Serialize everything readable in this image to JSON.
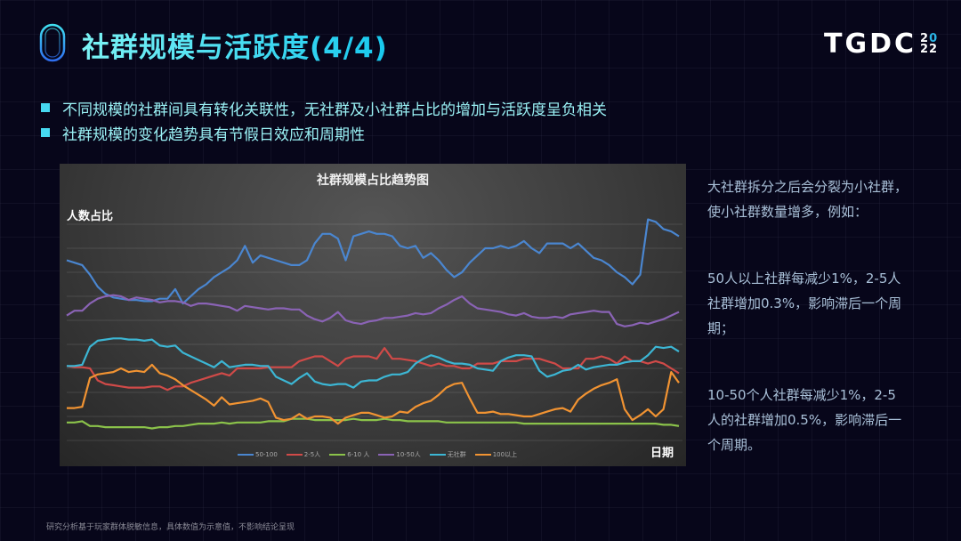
{
  "header": {
    "title": "社群规模与活跃度(4/4)",
    "brand": {
      "name": "TGDC",
      "year_top": "2",
      "year_top_accent": "0",
      "year_bottom": "22"
    }
  },
  "bullets": [
    "不同规模的社群间具有转化关联性，无社群及小社群占比的增加与活跃度呈负相关",
    "社群规模的变化趋势具有节假日效应和周期性"
  ],
  "colors": {
    "title_gradient_start": "#7cf3f5",
    "title_gradient_end": "#17c8ee",
    "bullet_text": "#9af1f5",
    "background": "#07061a",
    "side_text": "#a9c0d8"
  },
  "side_notes": [
    "大社群拆分之后会分裂为小社群，使小社群数量增多，例如：",
    "50人以上社群每减少1%，2-5人社群增加0.3%，影响滞后一个周期；",
    "10-50个人社群每减少1%，2-5人的社群增加0.5%，影响滞后一个周期。"
  ],
  "footer": "研究分析基于玩家群体脱敏信息，具体数值为示意值，不影响结论呈现",
  "chart_data": {
    "type": "line",
    "title": "社群规模占比趋势图",
    "xlabel": "日期",
    "ylabel": "人数占比",
    "grid": true,
    "legend_position": "bottom",
    "ylim": [
      0,
      9
    ],
    "x_count": 80,
    "series": [
      {
        "name": "50-100",
        "color": "#4a86d0",
        "values": [
          7.5,
          7.4,
          7.3,
          6.9,
          6.4,
          6.1,
          5.95,
          5.9,
          5.85,
          5.85,
          5.8,
          5.8,
          5.9,
          5.9,
          6.3,
          5.7,
          6.0,
          6.3,
          6.5,
          6.8,
          7.0,
          7.2,
          7.5,
          8.1,
          7.4,
          7.7,
          7.6,
          7.5,
          7.4,
          7.3,
          7.3,
          7.5,
          8.2,
          8.6,
          8.6,
          8.4,
          7.5,
          8.5,
          8.6,
          8.7,
          8.6,
          8.6,
          8.5,
          8.1,
          8.0,
          8.1,
          7.6,
          7.8,
          7.5,
          7.1,
          6.8,
          7.0,
          7.4,
          7.7,
          8.0,
          8.0,
          8.1,
          8.0,
          8.1,
          8.3,
          8.0,
          7.8,
          8.2,
          8.2,
          8.2,
          8.0,
          8.2,
          7.9,
          7.6,
          7.5,
          7.3,
          7.0,
          6.8,
          6.5,
          6.9,
          9.2,
          9.1,
          8.8,
          8.7,
          8.5
        ]
      },
      {
        "name": "2-5人",
        "color": "#d04a48",
        "values": [
          3.1,
          3.05,
          3.05,
          3.0,
          2.5,
          2.35,
          2.3,
          2.25,
          2.2,
          2.2,
          2.2,
          2.25,
          2.25,
          2.1,
          2.25,
          2.25,
          2.4,
          2.5,
          2.6,
          2.7,
          2.8,
          2.7,
          3.0,
          3.0,
          3.0,
          3.0,
          3.05,
          3.05,
          3.05,
          3.05,
          3.3,
          3.4,
          3.5,
          3.5,
          3.3,
          3.1,
          3.4,
          3.5,
          3.5,
          3.5,
          3.4,
          3.85,
          3.4,
          3.4,
          3.35,
          3.3,
          3.2,
          3.1,
          3.2,
          3.1,
          3.1,
          3.0,
          3.0,
          3.2,
          3.2,
          3.2,
          3.3,
          3.3,
          3.3,
          3.4,
          3.4,
          3.4,
          3.3,
          3.2,
          3.0,
          3.0,
          3.0,
          3.4,
          3.4,
          3.5,
          3.4,
          3.2,
          3.5,
          3.3,
          3.3,
          3.2,
          3.3,
          3.2,
          3.0,
          2.8
        ]
      },
      {
        "name": "6-10 人",
        "color": "#8bc34a",
        "values": [
          0.75,
          0.75,
          0.8,
          0.6,
          0.6,
          0.55,
          0.55,
          0.55,
          0.55,
          0.55,
          0.55,
          0.5,
          0.55,
          0.55,
          0.6,
          0.6,
          0.65,
          0.7,
          0.7,
          0.7,
          0.75,
          0.7,
          0.75,
          0.75,
          0.75,
          0.75,
          0.8,
          0.8,
          0.8,
          0.9,
          0.9,
          0.9,
          0.85,
          0.85,
          0.85,
          0.85,
          0.85,
          0.9,
          0.85,
          0.85,
          0.85,
          0.9,
          0.85,
          0.85,
          0.8,
          0.8,
          0.8,
          0.8,
          0.8,
          0.75,
          0.75,
          0.75,
          0.75,
          0.75,
          0.75,
          0.75,
          0.75,
          0.75,
          0.75,
          0.7,
          0.7,
          0.7,
          0.7,
          0.7,
          0.7,
          0.7,
          0.7,
          0.7,
          0.7,
          0.7,
          0.7,
          0.7,
          0.7,
          0.7,
          0.7,
          0.7,
          0.7,
          0.65,
          0.65,
          0.6
        ]
      },
      {
        "name": "10-50人",
        "color": "#8a63b5",
        "values": [
          5.2,
          5.4,
          5.4,
          5.7,
          5.9,
          6.0,
          6.05,
          6.0,
          5.85,
          5.95,
          5.9,
          5.85,
          5.75,
          5.8,
          5.8,
          5.75,
          5.6,
          5.7,
          5.7,
          5.65,
          5.6,
          5.55,
          5.4,
          5.6,
          5.55,
          5.5,
          5.45,
          5.5,
          5.5,
          5.45,
          5.45,
          5.2,
          5.05,
          4.95,
          5.1,
          5.35,
          5.0,
          4.9,
          4.85,
          4.95,
          5.0,
          5.1,
          5.1,
          5.15,
          5.2,
          5.3,
          5.25,
          5.3,
          5.5,
          5.65,
          5.85,
          6.0,
          5.7,
          5.5,
          5.45,
          5.4,
          5.35,
          5.25,
          5.2,
          5.3,
          5.15,
          5.1,
          5.1,
          5.15,
          5.1,
          5.25,
          5.3,
          5.35,
          5.4,
          5.35,
          5.35,
          4.85,
          4.75,
          4.8,
          4.9,
          4.85,
          4.95,
          5.05,
          5.2,
          5.35
        ]
      },
      {
        "name": "无社群",
        "color": "#3cb6d4",
        "values": [
          3.1,
          3.1,
          3.15,
          3.9,
          4.15,
          4.2,
          4.25,
          4.25,
          4.2,
          4.2,
          4.15,
          4.2,
          3.95,
          3.9,
          3.95,
          3.65,
          3.5,
          3.35,
          3.2,
          3.05,
          3.3,
          3.05,
          3.1,
          3.15,
          3.15,
          3.1,
          3.1,
          2.65,
          2.5,
          2.35,
          2.6,
          2.8,
          2.45,
          2.35,
          2.3,
          2.35,
          2.35,
          2.2,
          2.45,
          2.5,
          2.5,
          2.65,
          2.75,
          2.75,
          2.85,
          3.2,
          3.4,
          3.55,
          3.45,
          3.3,
          3.2,
          3.2,
          3.15,
          3.0,
          2.95,
          2.9,
          3.3,
          3.45,
          3.55,
          3.55,
          3.5,
          2.9,
          2.65,
          2.75,
          2.9,
          2.95,
          3.15,
          2.95,
          3.05,
          3.1,
          3.15,
          3.15,
          3.25,
          3.3,
          3.3,
          3.55,
          3.9,
          3.85,
          3.9,
          3.7
        ]
      },
      {
        "name": "100以上",
        "color": "#f19332",
        "values": [
          1.35,
          1.35,
          1.4,
          2.6,
          2.75,
          2.8,
          2.85,
          3.0,
          2.85,
          2.9,
          2.85,
          3.15,
          2.8,
          2.7,
          2.55,
          2.3,
          2.1,
          1.9,
          1.7,
          1.45,
          1.8,
          1.5,
          1.55,
          1.6,
          1.65,
          1.75,
          1.6,
          0.95,
          0.85,
          0.9,
          1.1,
          0.9,
          1.0,
          1.0,
          0.95,
          0.7,
          0.95,
          1.05,
          1.15,
          1.15,
          1.05,
          0.95,
          1.0,
          1.2,
          1.15,
          1.4,
          1.55,
          1.65,
          1.9,
          2.2,
          2.35,
          2.4,
          1.75,
          1.15,
          1.15,
          1.2,
          1.1,
          1.1,
          1.05,
          1.0,
          1.0,
          1.1,
          1.2,
          1.3,
          1.35,
          1.2,
          1.7,
          1.95,
          2.15,
          2.3,
          2.4,
          2.55,
          1.3,
          0.85,
          1.05,
          1.3,
          1.0,
          1.3,
          2.85,
          2.4
        ]
      }
    ]
  }
}
